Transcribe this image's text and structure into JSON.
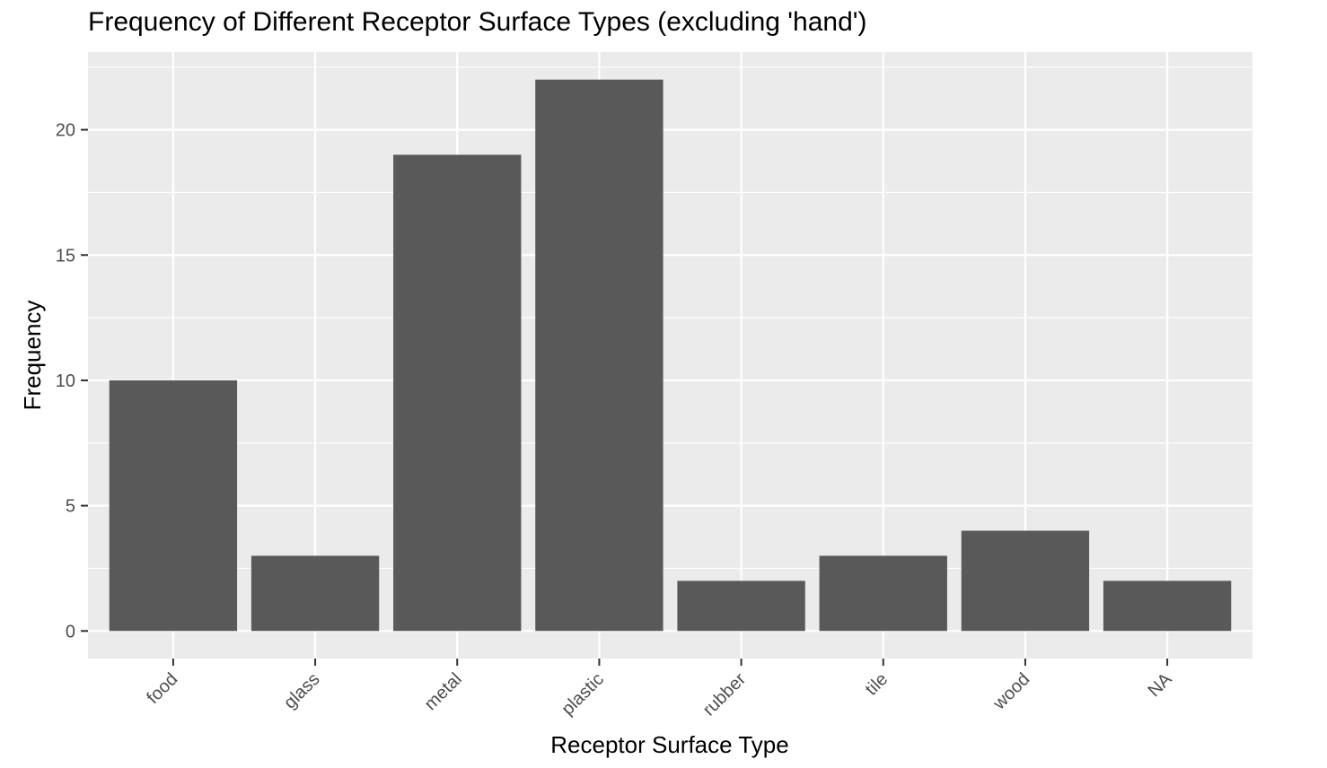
{
  "chart_data": {
    "type": "bar",
    "title": "Frequency of Different Receptor Surface Types (excluding 'hand')",
    "xlabel": "Receptor Surface Type",
    "ylabel": "Frequency",
    "categories": [
      "food",
      "glass",
      "metal",
      "plastic",
      "rubber",
      "tile",
      "wood",
      "NA"
    ],
    "values": [
      10,
      3,
      19,
      22,
      2,
      3,
      4,
      2
    ],
    "yticks": [
      0,
      5,
      10,
      15,
      20
    ],
    "ylim": [
      -1.1,
      23.1
    ],
    "grid": true,
    "legend": "none",
    "colors": {
      "panel": "#ebebeb",
      "grid": "#ffffff",
      "bar": "#595959",
      "tick": "#333333",
      "tick_label": "#4d4d4d"
    }
  }
}
